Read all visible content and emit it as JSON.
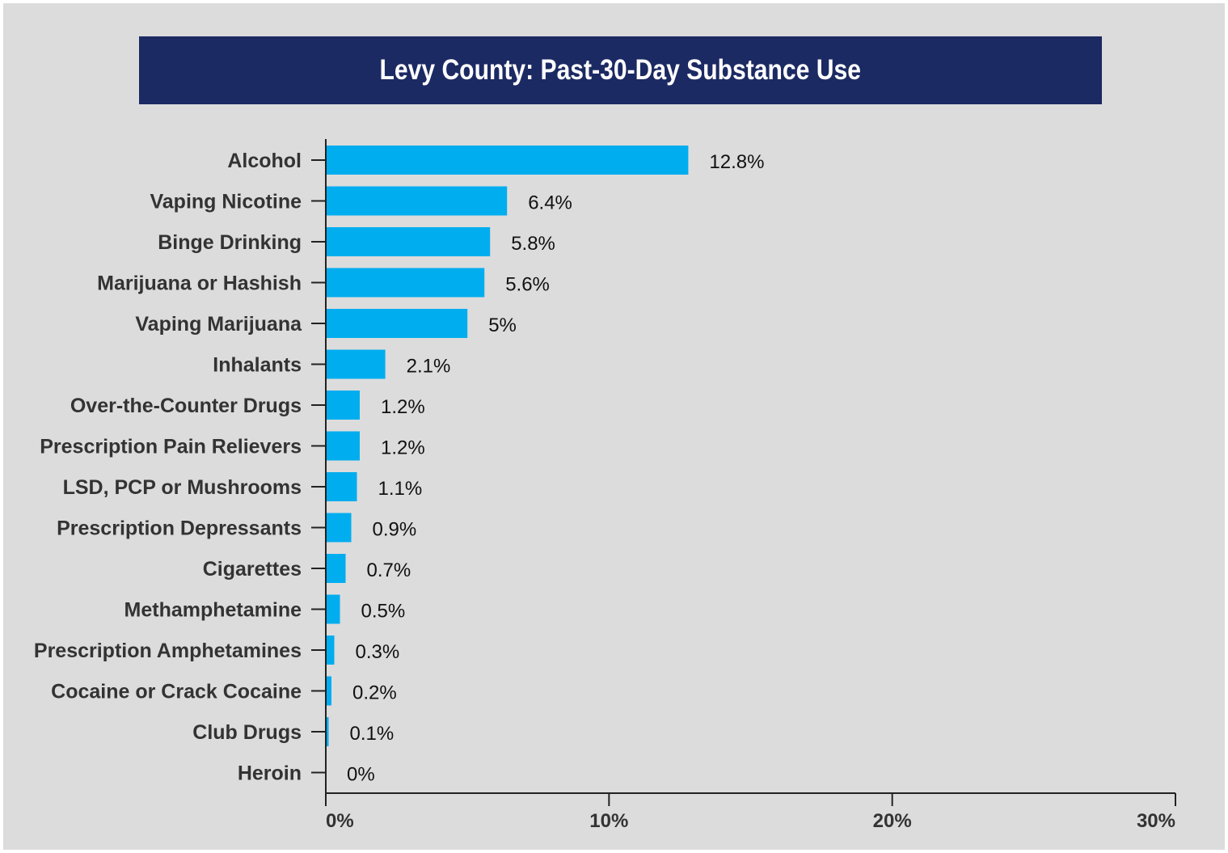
{
  "chart_data": {
    "type": "bar",
    "orientation": "horizontal",
    "title": "Levy County: Past-30-Day Substance Use",
    "categories": [
      "Alcohol",
      "Vaping Nicotine",
      "Binge Drinking",
      "Marijuana or Hashish",
      "Vaping Marijuana",
      "Inhalants",
      "Over-the-Counter Drugs",
      "Prescription Pain Relievers",
      "LSD, PCP or Mushrooms",
      "Prescription Depressants",
      "Cigarettes",
      "Methamphetamine",
      "Prescription Amphetamines",
      "Cocaine or Crack Cocaine",
      "Club Drugs",
      "Heroin"
    ],
    "values": [
      12.8,
      6.4,
      5.8,
      5.6,
      5,
      2.1,
      1.2,
      1.2,
      1.1,
      0.9,
      0.7,
      0.5,
      0.3,
      0.2,
      0.1,
      0
    ],
    "value_labels": [
      "12.8%",
      "6.4%",
      "5.8%",
      "5.6%",
      "5%",
      "2.1%",
      "1.2%",
      "1.2%",
      "1.1%",
      "0.9%",
      "0.7%",
      "0.5%",
      "0.3%",
      "0.2%",
      "0.1%",
      "0%"
    ],
    "xlim": [
      0,
      30
    ],
    "xticks": [
      0,
      10,
      20,
      30
    ],
    "xtick_labels": [
      "0%",
      "10%",
      "20%",
      "30%"
    ],
    "xlabel": "",
    "ylabel": "",
    "grid": false,
    "legend": "none",
    "colors": {
      "bar": "#00adef",
      "title_background": "#1c2a63",
      "title_text": "#ffffff",
      "plot_background": "#dcdcdc",
      "axis": "#222222",
      "category_text": "#333333",
      "value_text": "#111111"
    }
  }
}
